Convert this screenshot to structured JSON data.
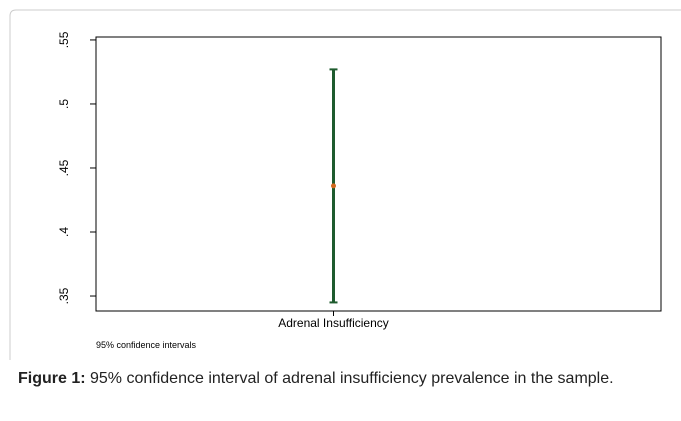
{
  "chart_data": {
    "type": "errorbar",
    "categories": [
      "Adrenal Insufficiency"
    ],
    "values": [
      0.436
    ],
    "lower": [
      0.345
    ],
    "upper": [
      0.527
    ],
    "color": "#1e5b2e",
    "point_color": "#d2691e",
    "ylim": [
      0.3383,
      0.5523
    ],
    "yticks": [
      {
        "value": 0.35,
        "label": ".35"
      },
      {
        "value": 0.4,
        "label": ".4"
      },
      {
        "value": 0.45,
        "label": ".45"
      },
      {
        "value": 0.5,
        "label": ".5"
      },
      {
        "value": 0.55,
        "label": ".55"
      }
    ],
    "note": "95% confidence intervals",
    "grid": false
  },
  "caption": {
    "label": "Figure 1:",
    "text": " 95% confidence interval of adrenal insufficiency prevalence in the sample."
  }
}
